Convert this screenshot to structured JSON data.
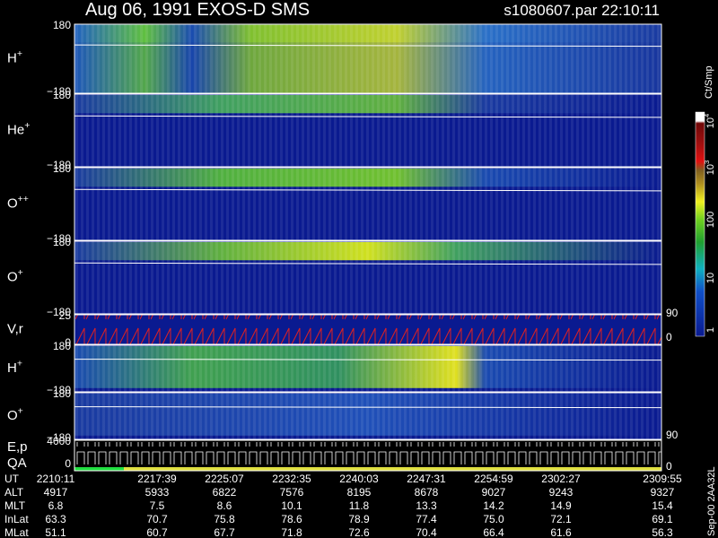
{
  "header": {
    "title": "Aug 06, 1991   EXOS-D SMS",
    "file": "s1080607.par  22:10:11"
  },
  "panels": [
    {
      "label": {
        "text": "H",
        "sup": "+"
      },
      "ticks": [
        "180",
        "−180"
      ],
      "right": []
    },
    {
      "label": {
        "text": "He",
        "sup": "+"
      },
      "ticks": [
        "180",
        "−180"
      ],
      "right": []
    },
    {
      "label": {
        "text": "O",
        "sup": "++"
      },
      "ticks": [
        "180",
        "−180"
      ],
      "right": []
    },
    {
      "label": {
        "text": "O",
        "sup": "+"
      },
      "ticks": [
        "180",
        "−180"
      ],
      "right": []
    },
    {
      "label": {
        "text": "V,r",
        "sup": ""
      },
      "ticks": [
        "25",
        "0"
      ],
      "right": [
        "90",
        "0"
      ]
    },
    {
      "label": {
        "text": "H",
        "sup": "+"
      },
      "ticks": [
        "180",
        "−180"
      ],
      "right": []
    },
    {
      "label": {
        "text": "O",
        "sup": "+"
      },
      "ticks": [
        "180",
        "−180"
      ],
      "right": [
        "90"
      ]
    },
    {
      "label": {
        "text": "E,p",
        "sup": ""
      },
      "label2": "QA",
      "ticks": [
        "4000",
        "0"
      ],
      "right": [
        "0"
      ]
    }
  ],
  "colorbar": {
    "title": "Ct/Smp",
    "ticks": [
      {
        "base": "10",
        "sup": "4"
      },
      {
        "base": "10",
        "sup": "3"
      },
      {
        "base": "100",
        "sup": ""
      },
      {
        "base": "10",
        "sup": ""
      },
      {
        "base": "1",
        "sup": ""
      }
    ]
  },
  "table": {
    "rows": [
      {
        "name": "UT",
        "cells": [
          "2210:11",
          "2217:39",
          "2225:07",
          "2232:35",
          "2240:03",
          "2247:31",
          "2254:59",
          "2302:27",
          "2309:55"
        ]
      },
      {
        "name": "ALT",
        "cells": [
          "4917",
          "5933",
          "6822",
          "7576",
          "8195",
          "8678",
          "9027",
          "9243",
          "9327"
        ]
      },
      {
        "name": "MLT",
        "cells": [
          "6.8",
          "7.5",
          "8.6",
          "10.1",
          "11.8",
          "13.3",
          "14.2",
          "14.9",
          "15.4"
        ]
      },
      {
        "name": "InLat",
        "cells": [
          "63.3",
          "70.7",
          "75.8",
          "78.6",
          "78.9",
          "77.4",
          "75.0",
          "72.1",
          "69.1"
        ]
      },
      {
        "name": "MLat",
        "cells": [
          "51.1",
          "60.7",
          "67.7",
          "71.8",
          "72.6",
          "70.4",
          "66.4",
          "61.6",
          "56.3"
        ]
      }
    ]
  },
  "footer": "Sep-00 2AA32L"
}
